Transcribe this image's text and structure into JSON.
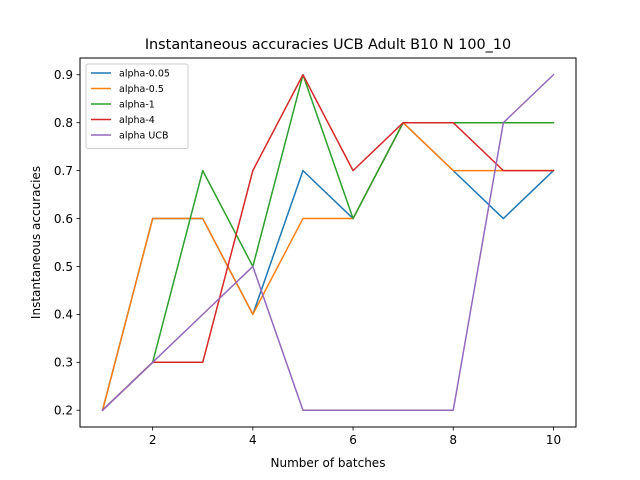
{
  "chart_data": {
    "type": "line",
    "title": "Instantaneous accuracies UCB Adult B10 N 100_10",
    "xlabel": "Number of batches",
    "ylabel": "Instantaneous accuracies",
    "x": [
      1,
      2,
      3,
      4,
      5,
      6,
      7,
      8,
      9,
      10
    ],
    "xlim": [
      0.55,
      10.45
    ],
    "ylim": [
      0.165,
      0.935
    ],
    "xticks": [
      2,
      4,
      6,
      8,
      10
    ],
    "yticks": [
      0.2,
      0.3,
      0.4,
      0.5,
      0.6,
      0.7,
      0.8,
      0.9
    ],
    "grid": false,
    "legend_position": "top-left",
    "series": [
      {
        "name": "alpha-0.05",
        "color": "#1f77b4",
        "values": [
          0.2,
          0.6,
          0.6,
          0.4,
          0.7,
          0.6,
          0.8,
          0.7,
          0.6,
          0.7
        ]
      },
      {
        "name": "alpha-0.5",
        "color": "#ff7f0e",
        "values": [
          0.2,
          0.6,
          0.6,
          0.4,
          0.6,
          0.6,
          0.8,
          0.7,
          0.7,
          0.7
        ]
      },
      {
        "name": "alpha-1",
        "color": "#2ca02c",
        "values": [
          0.2,
          0.3,
          0.7,
          0.5,
          0.9,
          0.6,
          0.8,
          0.8,
          0.8,
          0.8
        ]
      },
      {
        "name": "alpha-4",
        "color": "#d62728",
        "values": [
          0.2,
          0.3,
          0.3,
          0.7,
          0.9,
          0.7,
          0.8,
          0.8,
          0.7,
          0.7
        ]
      },
      {
        "name": "alpha UCB",
        "color": "#9467bd",
        "values": [
          0.2,
          0.3,
          0.4,
          0.5,
          0.2,
          0.2,
          0.2,
          0.2,
          0.8,
          0.9
        ]
      }
    ]
  }
}
